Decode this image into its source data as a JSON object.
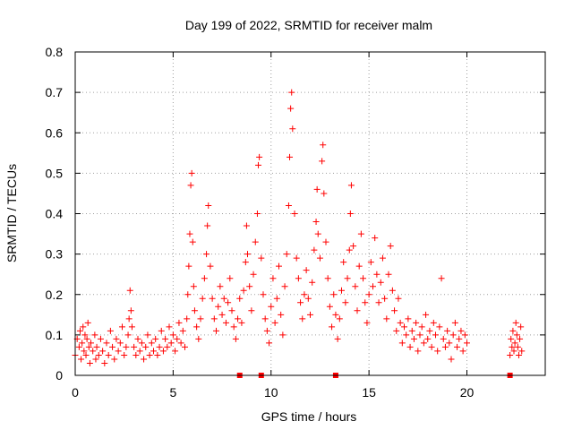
{
  "chart_data": {
    "type": "scatter",
    "title": "Day 199 of 2022, SRMTID for receiver malm",
    "xlabel": "GPS time / hours",
    "ylabel": "SRMTID / TECUs",
    "xlim": [
      0,
      24
    ],
    "ylim": [
      0,
      0.8
    ],
    "xticks": [
      0,
      5,
      10,
      15,
      20
    ],
    "xtick_labels": [
      "0",
      "5",
      "10",
      "15",
      "20"
    ],
    "yticks": [
      0,
      0.1,
      0.2,
      0.3,
      0.4,
      0.5,
      0.6,
      0.7,
      0.8
    ],
    "ytick_labels": [
      "0",
      "0.1",
      "0.2",
      "0.3",
      "0.4",
      "0.5",
      "0.6",
      "0.7",
      "0.8"
    ],
    "grid": true,
    "marker": "+",
    "color": "#ff0000",
    "series": [
      {
        "name": "SRMTID",
        "points": [
          [
            0.0,
            0.05
          ],
          [
            0.1,
            0.09
          ],
          [
            0.2,
            0.07
          ],
          [
            0.25,
            0.11
          ],
          [
            0.3,
            0.04
          ],
          [
            0.35,
            0.08
          ],
          [
            0.4,
            0.12
          ],
          [
            0.45,
            0.06
          ],
          [
            0.5,
            0.1
          ],
          [
            0.55,
            0.05
          ],
          [
            0.6,
            0.09
          ],
          [
            0.65,
            0.13
          ],
          [
            0.7,
            0.07
          ],
          [
            0.75,
            0.03
          ],
          [
            0.8,
            0.08
          ],
          [
            0.9,
            0.06
          ],
          [
            1.0,
            0.1
          ],
          [
            1.05,
            0.04
          ],
          [
            1.1,
            0.07
          ],
          [
            1.2,
            0.05
          ],
          [
            1.3,
            0.09
          ],
          [
            1.4,
            0.06
          ],
          [
            1.5,
            0.03
          ],
          [
            1.6,
            0.08
          ],
          [
            1.7,
            0.05
          ],
          [
            1.8,
            0.11
          ],
          [
            1.9,
            0.07
          ],
          [
            2.0,
            0.04
          ],
          [
            2.1,
            0.09
          ],
          [
            2.2,
            0.06
          ],
          [
            2.3,
            0.08
          ],
          [
            2.4,
            0.12
          ],
          [
            2.5,
            0.05
          ],
          [
            2.6,
            0.07
          ],
          [
            2.7,
            0.1
          ],
          [
            2.75,
            0.14
          ],
          [
            2.8,
            0.21
          ],
          [
            2.85,
            0.16
          ],
          [
            2.9,
            0.12
          ],
          [
            3.0,
            0.07
          ],
          [
            3.1,
            0.05
          ],
          [
            3.2,
            0.09
          ],
          [
            3.3,
            0.06
          ],
          [
            3.4,
            0.08
          ],
          [
            3.5,
            0.04
          ],
          [
            3.6,
            0.07
          ],
          [
            3.7,
            0.1
          ],
          [
            3.8,
            0.05
          ],
          [
            3.9,
            0.08
          ],
          [
            4.0,
            0.06
          ],
          [
            4.1,
            0.09
          ],
          [
            4.2,
            0.05
          ],
          [
            4.3,
            0.07
          ],
          [
            4.4,
            0.11
          ],
          [
            4.5,
            0.06
          ],
          [
            4.6,
            0.09
          ],
          [
            4.7,
            0.07
          ],
          [
            4.8,
            0.12
          ],
          [
            4.9,
            0.08
          ],
          [
            5.0,
            0.1
          ],
          [
            5.1,
            0.06
          ],
          [
            5.2,
            0.09
          ],
          [
            5.3,
            0.13
          ],
          [
            5.4,
            0.08
          ],
          [
            5.5,
            0.11
          ],
          [
            5.6,
            0.07
          ],
          [
            5.7,
            0.14
          ],
          [
            5.75,
            0.2
          ],
          [
            5.8,
            0.27
          ],
          [
            5.85,
            0.35
          ],
          [
            5.9,
            0.47
          ],
          [
            5.95,
            0.5
          ],
          [
            6.0,
            0.33
          ],
          [
            6.05,
            0.22
          ],
          [
            6.1,
            0.16
          ],
          [
            6.2,
            0.12
          ],
          [
            6.3,
            0.09
          ],
          [
            6.4,
            0.14
          ],
          [
            6.5,
            0.19
          ],
          [
            6.6,
            0.24
          ],
          [
            6.7,
            0.3
          ],
          [
            6.75,
            0.37
          ],
          [
            6.8,
            0.42
          ],
          [
            6.9,
            0.27
          ],
          [
            7.0,
            0.19
          ],
          [
            7.1,
            0.14
          ],
          [
            7.2,
            0.11
          ],
          [
            7.3,
            0.17
          ],
          [
            7.4,
            0.22
          ],
          [
            7.5,
            0.15
          ],
          [
            7.6,
            0.19
          ],
          [
            7.7,
            0.13
          ],
          [
            7.8,
            0.18
          ],
          [
            7.9,
            0.24
          ],
          [
            8.0,
            0.16
          ],
          [
            8.1,
            0.12
          ],
          [
            8.2,
            0.09
          ],
          [
            8.3,
            0.14
          ],
          [
            8.4,
            0.19
          ],
          [
            8.5,
            0.13
          ],
          [
            8.6,
            0.21
          ],
          [
            8.7,
            0.28
          ],
          [
            8.75,
            0.37
          ],
          [
            8.8,
            0.3
          ],
          [
            8.9,
            0.22
          ],
          [
            9.0,
            0.16
          ],
          [
            9.1,
            0.25
          ],
          [
            9.2,
            0.33
          ],
          [
            9.3,
            0.4
          ],
          [
            9.35,
            0.52
          ],
          [
            9.4,
            0.54
          ],
          [
            9.5,
            0.29
          ],
          [
            9.6,
            0.2
          ],
          [
            9.7,
            0.14
          ],
          [
            9.8,
            0.11
          ],
          [
            9.9,
            0.08
          ],
          [
            10.0,
            0.17
          ],
          [
            10.1,
            0.24
          ],
          [
            10.2,
            0.13
          ],
          [
            10.3,
            0.19
          ],
          [
            10.4,
            0.27
          ],
          [
            10.5,
            0.15
          ],
          [
            10.6,
            0.1
          ],
          [
            10.7,
            0.22
          ],
          [
            10.8,
            0.3
          ],
          [
            10.9,
            0.42
          ],
          [
            10.95,
            0.54
          ],
          [
            11.0,
            0.66
          ],
          [
            11.05,
            0.7
          ],
          [
            11.1,
            0.61
          ],
          [
            11.2,
            0.4
          ],
          [
            11.3,
            0.29
          ],
          [
            11.4,
            0.24
          ],
          [
            11.5,
            0.18
          ],
          [
            11.6,
            0.14
          ],
          [
            11.7,
            0.2
          ],
          [
            11.8,
            0.26
          ],
          [
            11.9,
            0.19
          ],
          [
            12.0,
            0.15
          ],
          [
            12.1,
            0.23
          ],
          [
            12.2,
            0.31
          ],
          [
            12.3,
            0.38
          ],
          [
            12.35,
            0.46
          ],
          [
            12.4,
            0.35
          ],
          [
            12.5,
            0.29
          ],
          [
            12.6,
            0.53
          ],
          [
            12.65,
            0.57
          ],
          [
            12.7,
            0.45
          ],
          [
            12.8,
            0.33
          ],
          [
            12.9,
            0.24
          ],
          [
            13.0,
            0.17
          ],
          [
            13.1,
            0.12
          ],
          [
            13.2,
            0.2
          ],
          [
            13.3,
            0.15
          ],
          [
            13.4,
            0.09
          ],
          [
            13.5,
            0.14
          ],
          [
            13.6,
            0.21
          ],
          [
            13.7,
            0.28
          ],
          [
            13.8,
            0.18
          ],
          [
            13.9,
            0.24
          ],
          [
            14.0,
            0.31
          ],
          [
            14.05,
            0.4
          ],
          [
            14.1,
            0.47
          ],
          [
            14.2,
            0.32
          ],
          [
            14.3,
            0.22
          ],
          [
            14.4,
            0.16
          ],
          [
            14.5,
            0.27
          ],
          [
            14.6,
            0.35
          ],
          [
            14.7,
            0.24
          ],
          [
            14.8,
            0.18
          ],
          [
            14.9,
            0.13
          ],
          [
            15.0,
            0.2
          ],
          [
            15.1,
            0.28
          ],
          [
            15.2,
            0.22
          ],
          [
            15.3,
            0.34
          ],
          [
            15.4,
            0.25
          ],
          [
            15.5,
            0.18
          ],
          [
            15.6,
            0.23
          ],
          [
            15.7,
            0.29
          ],
          [
            15.8,
            0.19
          ],
          [
            15.9,
            0.14
          ],
          [
            16.0,
            0.25
          ],
          [
            16.1,
            0.32
          ],
          [
            16.2,
            0.21
          ],
          [
            16.3,
            0.16
          ],
          [
            16.4,
            0.11
          ],
          [
            16.5,
            0.19
          ],
          [
            16.6,
            0.13
          ],
          [
            16.7,
            0.08
          ],
          [
            16.8,
            0.12
          ],
          [
            16.9,
            0.1
          ],
          [
            17.0,
            0.14
          ],
          [
            17.1,
            0.07
          ],
          [
            17.2,
            0.11
          ],
          [
            17.3,
            0.09
          ],
          [
            17.4,
            0.13
          ],
          [
            17.5,
            0.06
          ],
          [
            17.6,
            0.1
          ],
          [
            17.7,
            0.12
          ],
          [
            17.8,
            0.08
          ],
          [
            17.9,
            0.15
          ],
          [
            18.0,
            0.09
          ],
          [
            18.1,
            0.11
          ],
          [
            18.2,
            0.07
          ],
          [
            18.3,
            0.13
          ],
          [
            18.4,
            0.1
          ],
          [
            18.5,
            0.06
          ],
          [
            18.6,
            0.12
          ],
          [
            18.7,
            0.24
          ],
          [
            18.8,
            0.09
          ],
          [
            18.9,
            0.07
          ],
          [
            19.0,
            0.11
          ],
          [
            19.1,
            0.08
          ],
          [
            19.2,
            0.04
          ],
          [
            19.3,
            0.1
          ],
          [
            19.4,
            0.13
          ],
          [
            19.5,
            0.07
          ],
          [
            19.6,
            0.09
          ],
          [
            19.7,
            0.11
          ],
          [
            19.8,
            0.06
          ],
          [
            19.9,
            0.1
          ],
          [
            20.0,
            0.08
          ],
          [
            22.2,
            0.05
          ],
          [
            22.25,
            0.09
          ],
          [
            22.3,
            0.07
          ],
          [
            22.35,
            0.11
          ],
          [
            22.4,
            0.06
          ],
          [
            22.45,
            0.08
          ],
          [
            22.5,
            0.13
          ],
          [
            22.55,
            0.1
          ],
          [
            22.6,
            0.07
          ],
          [
            22.65,
            0.05
          ],
          [
            22.7,
            0.09
          ],
          [
            22.75,
            0.12
          ],
          [
            22.8,
            0.06
          ]
        ]
      },
      {
        "name": "zero-markers",
        "marker": "square",
        "points": [
          [
            8.4,
            0.0
          ],
          [
            9.5,
            0.0
          ],
          [
            13.3,
            0.0
          ],
          [
            22.2,
            0.0
          ]
        ]
      }
    ]
  }
}
